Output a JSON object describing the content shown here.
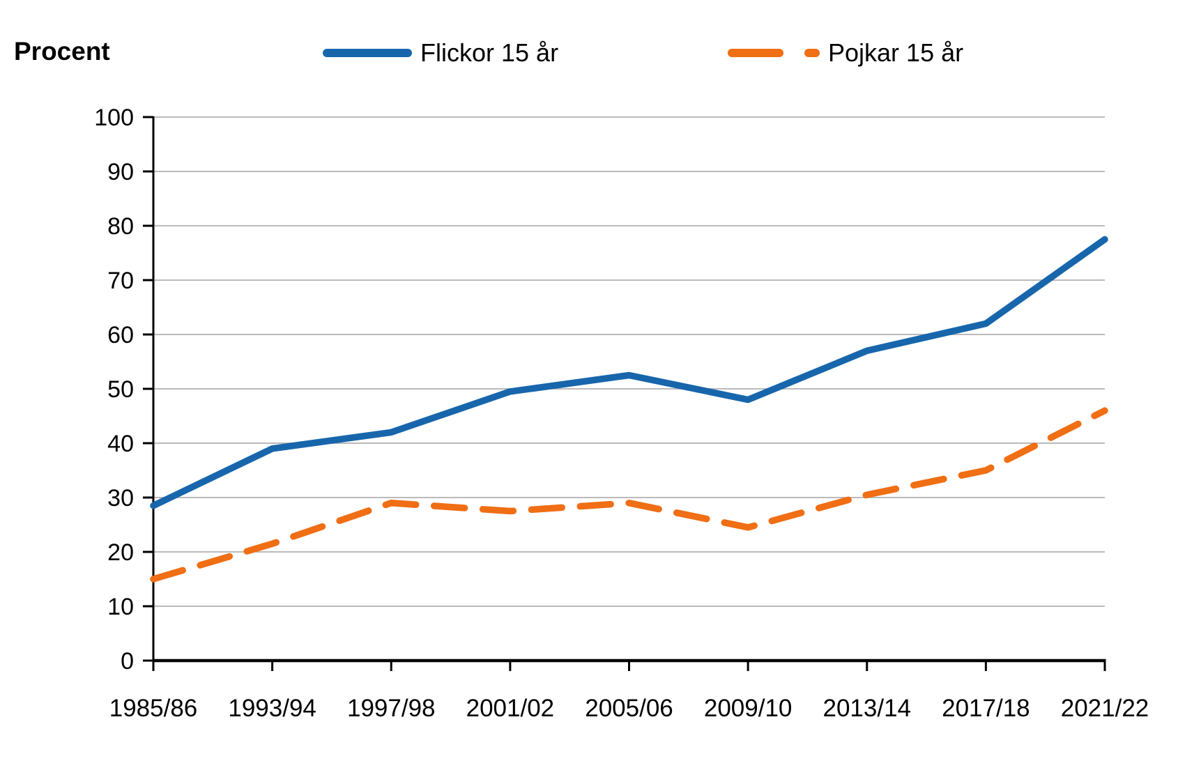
{
  "header": {
    "axis_unit_label": "Procent"
  },
  "legend": {
    "flickor_label": "Flickor 15 år",
    "pojkar_label": "Pojkar 15 år"
  },
  "colors": {
    "flickor": "#1766ac",
    "pojkar": "#f06e14",
    "gridline": "#b0b0b0",
    "axis": "#000000",
    "text": "#000000"
  },
  "chart_data": {
    "type": "line",
    "title": "",
    "ylabel": "Procent",
    "xlabel": "",
    "ylim": [
      0,
      100
    ],
    "yticks": [
      0,
      10,
      20,
      30,
      40,
      50,
      60,
      70,
      80,
      90,
      100
    ],
    "grid": "horizontal",
    "legend_position": "top",
    "categories": [
      "1985/86",
      "1993/94",
      "1997/98",
      "2001/02",
      "2005/06",
      "2009/10",
      "2013/14",
      "2017/18",
      "2021/22"
    ],
    "series": [
      {
        "name": "Flickor 15 år",
        "color": "#1766ac",
        "style": "solid",
        "values": [
          28.5,
          39,
          42,
          49.5,
          52.5,
          48,
          57,
          62,
          77.5
        ]
      },
      {
        "name": "Pojkar 15 år",
        "color": "#f06e14",
        "style": "dashed",
        "values": [
          15,
          21.5,
          29,
          27.5,
          29,
          24.5,
          30.5,
          35,
          46
        ]
      }
    ]
  }
}
